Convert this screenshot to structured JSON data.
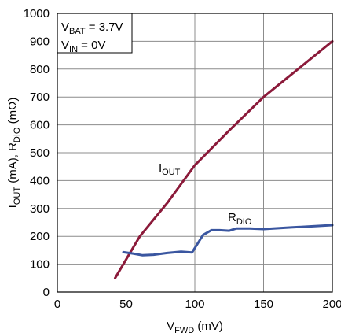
{
  "chart_data": {
    "type": "line",
    "xlim": [
      0,
      200
    ],
    "ylim": [
      0,
      1000
    ],
    "x_ticks": [
      "0",
      "50",
      "100",
      "150",
      "200"
    ],
    "y_ticks": [
      "0",
      "100",
      "200",
      "300",
      "400",
      "500",
      "600",
      "700",
      "800",
      "900",
      "1000"
    ],
    "xlabel": {
      "main": "V",
      "sub": "FWD",
      "rest": " (mV)"
    },
    "ylabel": {
      "p1": "I",
      "s1": "OUT",
      "p2": " (mA), R",
      "s2": "DIO",
      "p3": " (mΩ)"
    },
    "grid": true,
    "annotations": {
      "vbat": {
        "main": "V",
        "sub": "BAT",
        "rest": " = 3.7V"
      },
      "vin": {
        "main": "V",
        "sub": "IN",
        "rest": " = 0V"
      }
    },
    "series": [
      {
        "name_main": "I",
        "name_sub": "OUT",
        "color": "#8b1a3a",
        "x": [
          42,
          60,
          80,
          100,
          125,
          150,
          175,
          200
        ],
        "y": [
          50,
          200,
          320,
          455,
          580,
          700,
          800,
          900
        ]
      },
      {
        "name_main": "R",
        "name_sub": "DIO",
        "color": "#3a56a0",
        "x": [
          48,
          55,
          62,
          70,
          80,
          90,
          98,
          106,
          112,
          118,
          125,
          130,
          140,
          150,
          170,
          200
        ],
        "y": [
          143,
          138,
          132,
          134,
          140,
          145,
          142,
          205,
          222,
          222,
          220,
          228,
          228,
          226,
          232,
          240
        ]
      }
    ]
  }
}
